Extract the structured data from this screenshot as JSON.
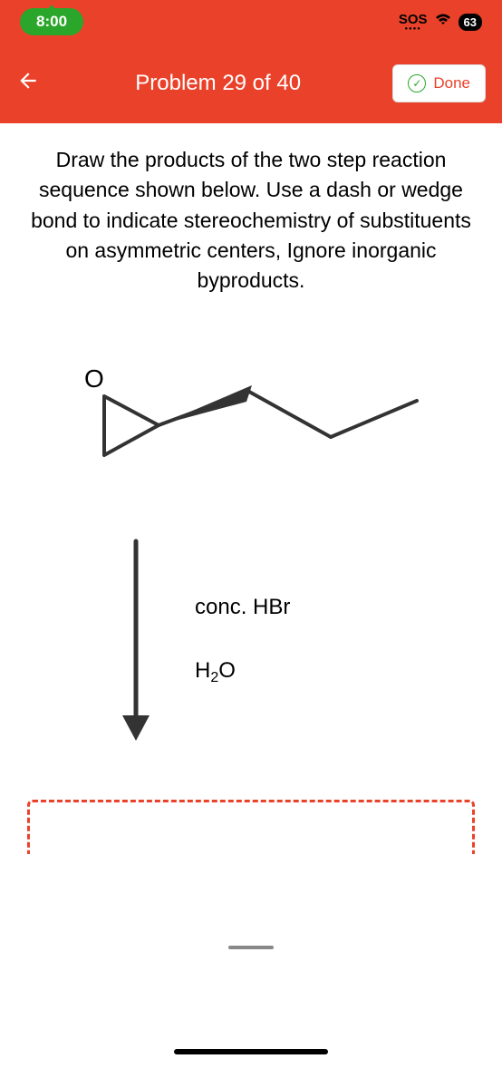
{
  "statusbar": {
    "time": "8:00",
    "sos": "SOS",
    "battery": "63"
  },
  "nav": {
    "title": "Problem 29 of 40",
    "done_label": "Done"
  },
  "question": "Draw the products of the two step reaction sequence shown below. Use a dash or wedge bond to indicate stereochemistry of substituents on asymmetric centers, Ignore inorganic byproducts.",
  "diagram": {
    "atom_label": "O",
    "reagent1": "conc. HBr",
    "reagent2": "H₂O",
    "colors": {
      "bond": "#333333",
      "arrow": "#333333",
      "answer_box": "#ea422a",
      "hex": "#e8e8e8"
    }
  }
}
